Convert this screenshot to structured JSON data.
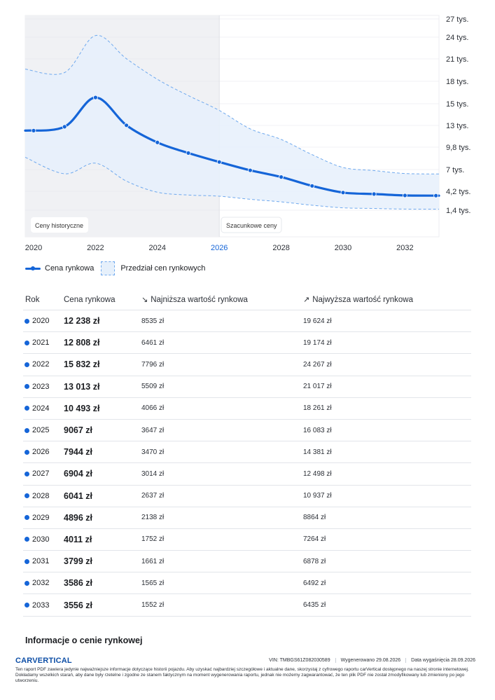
{
  "chart_data": {
    "type": "line",
    "x": [
      2020,
      2021,
      2022,
      2023,
      2024,
      2025,
      2026,
      2027,
      2028,
      2029,
      2030,
      2031,
      2032,
      2033
    ],
    "series": [
      {
        "name": "Cena rynkowa",
        "values": [
          12238,
          12808,
          15832,
          13013,
          10493,
          9067,
          7944,
          6904,
          6041,
          4896,
          4011,
          3799,
          3586,
          3556
        ]
      }
    ],
    "band": {
      "name": "Przedział cen rynkowych",
      "low": [
        8535,
        6461,
        7796,
        5509,
        4066,
        3647,
        3470,
        3014,
        2637,
        2138,
        1752,
        1661,
        1565,
        1552
      ],
      "high": [
        19624,
        19174,
        24267,
        21017,
        18261,
        16083,
        14381,
        12498,
        10937,
        8864,
        7264,
        6878,
        6492,
        6435
      ]
    },
    "x_ticks": [
      "2020",
      "2022",
      "2024",
      "2026",
      "2028",
      "2030",
      "2032"
    ],
    "x_highlight": "2026",
    "y_ticks": [
      {
        "value": 27000,
        "label": "27 tys."
      },
      {
        "value": 24000,
        "label": "24 tys."
      },
      {
        "value": 21000,
        "label": "21 tys."
      },
      {
        "value": 18000,
        "label": "18 tys."
      },
      {
        "value": 15000,
        "label": "15 tys."
      },
      {
        "value": 13000,
        "label": "13 tys."
      },
      {
        "value": 9800,
        "label": "9,8 tys."
      },
      {
        "value": 7000,
        "label": "7 tys."
      },
      {
        "value": 4200,
        "label": "4,2 tys."
      },
      {
        "value": 1400,
        "label": "1,4 tys."
      }
    ],
    "ylim": [
      0,
      27000
    ],
    "split_year": 2026,
    "region_labels": {
      "historical": "Ceny historyczne",
      "estimated": "Szacunkowe ceny"
    },
    "colors": {
      "line": "#1565d8",
      "band_fill": "#e6f0fb",
      "band_stroke": "#6fa9ee",
      "history_bg": "#f0f1f4",
      "grid": "#e4e6ea"
    },
    "legend": [
      "Cena rynkowa",
      "Przedział cen rynkowych"
    ],
    "legend_position": "bottom-left"
  },
  "table": {
    "headers": {
      "year": "Rok",
      "price": "Cena rynkowa",
      "min": "Najniższa wartość rynkowa",
      "max": "Najwyższa wartość rynkowa"
    },
    "rows": [
      {
        "year": "2020",
        "price": "12 238 zł",
        "min": "8535 zł",
        "max": "19 624 zł"
      },
      {
        "year": "2021",
        "price": "12 808 zł",
        "min": "6461 zł",
        "max": "19 174 zł"
      },
      {
        "year": "2022",
        "price": "15 832 zł",
        "min": "7796 zł",
        "max": "24 267 zł"
      },
      {
        "year": "2023",
        "price": "13 013 zł",
        "min": "5509 zł",
        "max": "21 017 zł"
      },
      {
        "year": "2024",
        "price": "10 493 zł",
        "min": "4066 zł",
        "max": "18 261 zł"
      },
      {
        "year": "2025",
        "price": "9067 zł",
        "min": "3647 zł",
        "max": "16 083 zł"
      },
      {
        "year": "2026",
        "price": "7944 zł",
        "min": "3470 zł",
        "max": "14 381 zł"
      },
      {
        "year": "2027",
        "price": "6904 zł",
        "min": "3014 zł",
        "max": "12 498 zł"
      },
      {
        "year": "2028",
        "price": "6041 zł",
        "min": "2637 zł",
        "max": "10 937 zł"
      },
      {
        "year": "2029",
        "price": "4896 zł",
        "min": "2138 zł",
        "max": "8864 zł"
      },
      {
        "year": "2030",
        "price": "4011 zł",
        "min": "1752 zł",
        "max": "7264 zł"
      },
      {
        "year": "2031",
        "price": "3799 zł",
        "min": "1661 zł",
        "max": "6878 zł"
      },
      {
        "year": "2032",
        "price": "3586 zł",
        "min": "1565 zł",
        "max": "6492 zł"
      },
      {
        "year": "2033",
        "price": "3556 zł",
        "min": "1552 zł",
        "max": "6435 zł"
      }
    ]
  },
  "info_heading": "Informacje o cenie rynkowej",
  "footer": {
    "logo": "CARVERTICAL",
    "vin": "VIN:  TMBGS61Z082030589",
    "generated": "Wygenerowano  29.08.2026",
    "expires": "Data wygaśnięcia  28.09.2026",
    "disclaimer": "Ten raport PDF zawiera jedynie najważniejsze informacje dotyczące historii pojazdu. Aby uzyskać najbardziej szczegółowe i aktualne dane, skorzystaj z cyfrowego raportu carVertical dostępnego na naszej stronie internetowej. Dokładamy wszelkich starań, aby dane były rzetelne i zgodne ze stanem faktycznym na moment wygenerowania raportu, jednak nie możemy zagwarantować, że ten plik PDF nie został zmodyfikowany lub zmieniony po jego utworzeniu."
  }
}
